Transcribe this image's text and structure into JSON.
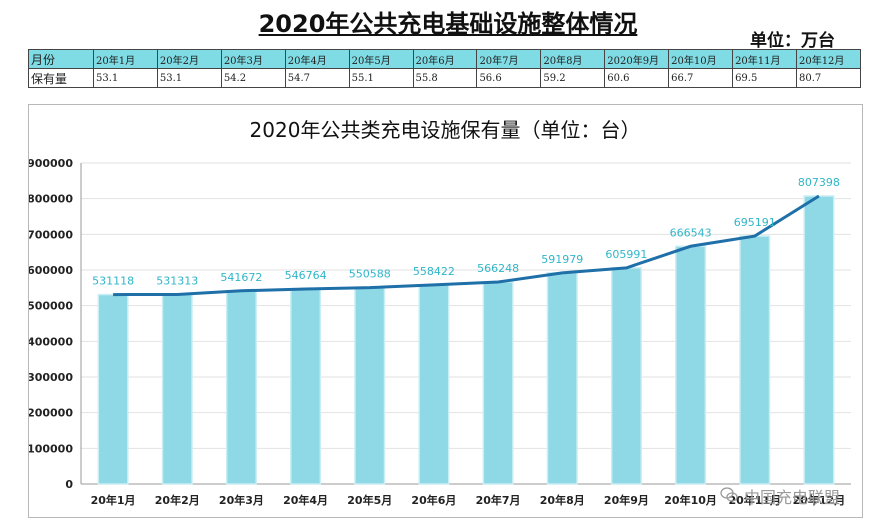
{
  "page": {
    "title": "2020年公共充电基础设施整体情况",
    "unit": "单位：万台"
  },
  "table": {
    "header_label": "月份",
    "row_label": "保有量",
    "months": [
      "20年1月",
      "20年2月",
      "20年3月",
      "20年4月",
      "20年5月",
      "20年6月",
      "20年7月",
      "20年8月",
      "2020年9月",
      "20年10月",
      "20年11月",
      "20年12月"
    ],
    "values": [
      "53.1",
      "53.1",
      "54.2",
      "54.7",
      "55.1",
      "55.8",
      "56.6",
      "59.2",
      "60.6",
      "66.7",
      "69.5",
      "80.7"
    ]
  },
  "watermark": {
    "text": "中国充电联盟",
    "icon": "wechat-icon"
  },
  "chart_data": {
    "type": "bar",
    "title": "2020年公共类充电设施保有量（单位：台）",
    "xlabel": "",
    "ylabel": "",
    "categories": [
      "20年1月",
      "20年2月",
      "20年3月",
      "20年4月",
      "20年5月",
      "20年6月",
      "20年7月",
      "20年8月",
      "20年9月",
      "20年10月",
      "20年11月",
      "20年12月"
    ],
    "values": [
      531118,
      531313,
      541672,
      546764,
      550588,
      558422,
      566248,
      591979,
      605991,
      666543,
      695191,
      807398
    ],
    "line_overlay": true,
    "ylim": [
      0,
      900000
    ],
    "yticks": [
      "0",
      "100000",
      "200000",
      "300000",
      "400000",
      "500000",
      "600000",
      "700000",
      "800000",
      "900000"
    ],
    "grid": true,
    "legend": "none",
    "colors": {
      "bar": "#8fd8e6",
      "bar_edge": "#c9eef4",
      "line": "#1f6fa8",
      "label": "#2fb6c9"
    }
  }
}
